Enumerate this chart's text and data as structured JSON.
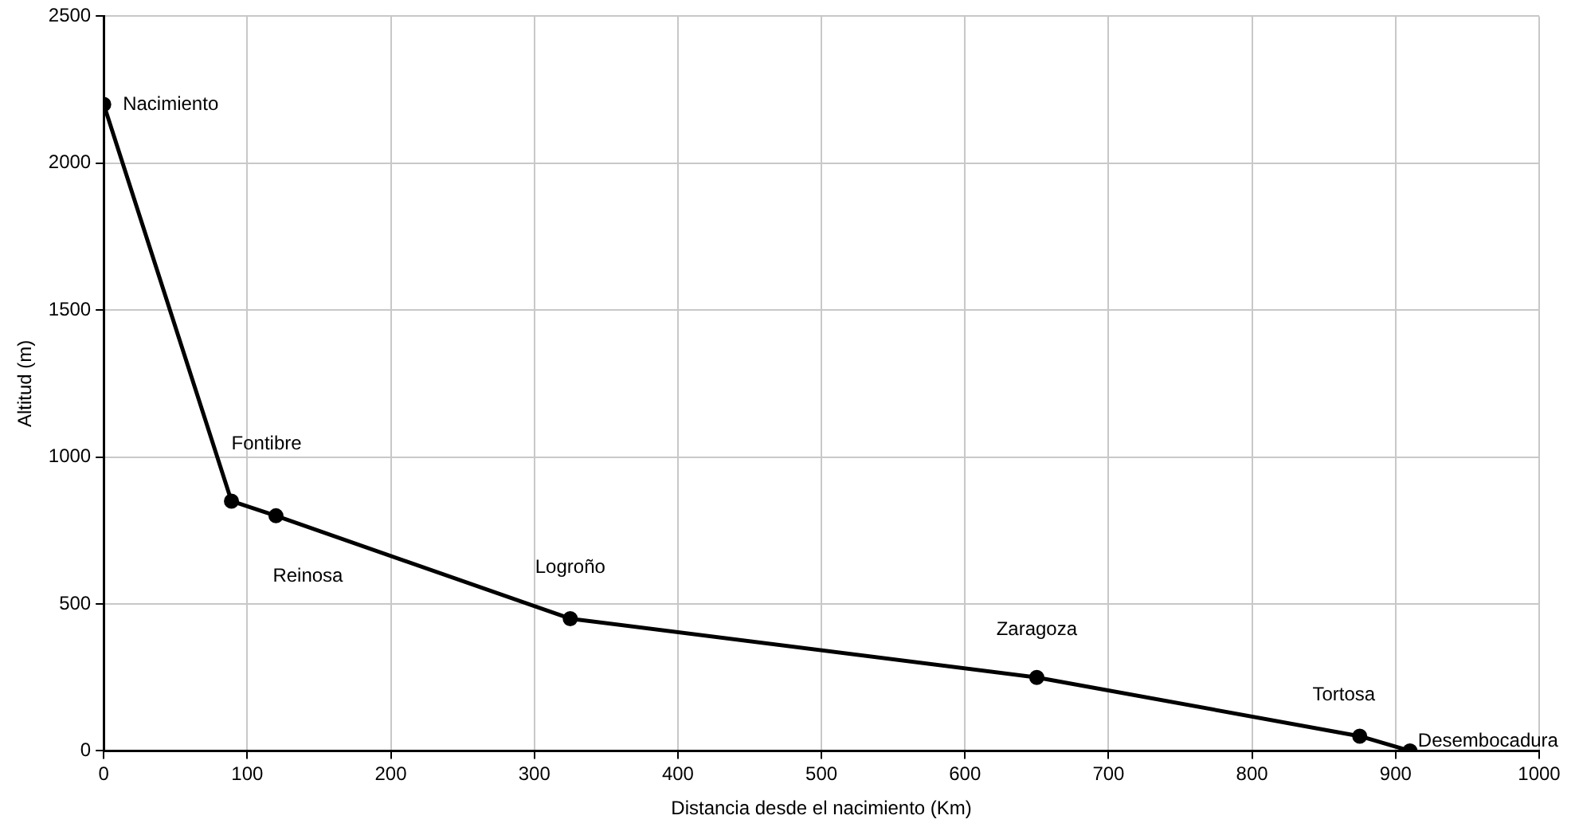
{
  "chart_data": {
    "type": "line",
    "xlabel": "Distancia desde el nacimiento (Km)",
    "ylabel": "Altitud (m)",
    "x": [
      0,
      89,
      120,
      325,
      650,
      875,
      910
    ],
    "series": [
      {
        "color": "#000000",
        "values": [
          2200,
          850,
          800,
          450,
          250,
          50,
          0
        ]
      }
    ],
    "xlim": [
      0,
      1000
    ],
    "xticks": [
      0,
      100,
      200,
      300,
      400,
      500,
      600,
      700,
      800,
      900,
      1000
    ],
    "ylim": [
      0,
      2500
    ],
    "yticks": [
      0,
      500,
      1000,
      1500,
      2000,
      2500
    ],
    "grid": true,
    "legend": false,
    "marker": "circle",
    "line_style": "solid",
    "annotations": [
      {
        "text": "Nacimiento",
        "x": 0,
        "y": 2200
      },
      {
        "text": "Fontibre",
        "x": 89,
        "y": 850
      },
      {
        "text": "Reinosa",
        "x": 120,
        "y": 800
      },
      {
        "text": "Logroño",
        "x": 325,
        "y": 450
      },
      {
        "text": "Zaragoza",
        "x": 650,
        "y": 250
      },
      {
        "text": "Tortosa",
        "x": 875,
        "y": 50
      },
      {
        "text": "Desembocadura",
        "x": 910,
        "y": 0
      }
    ]
  }
}
